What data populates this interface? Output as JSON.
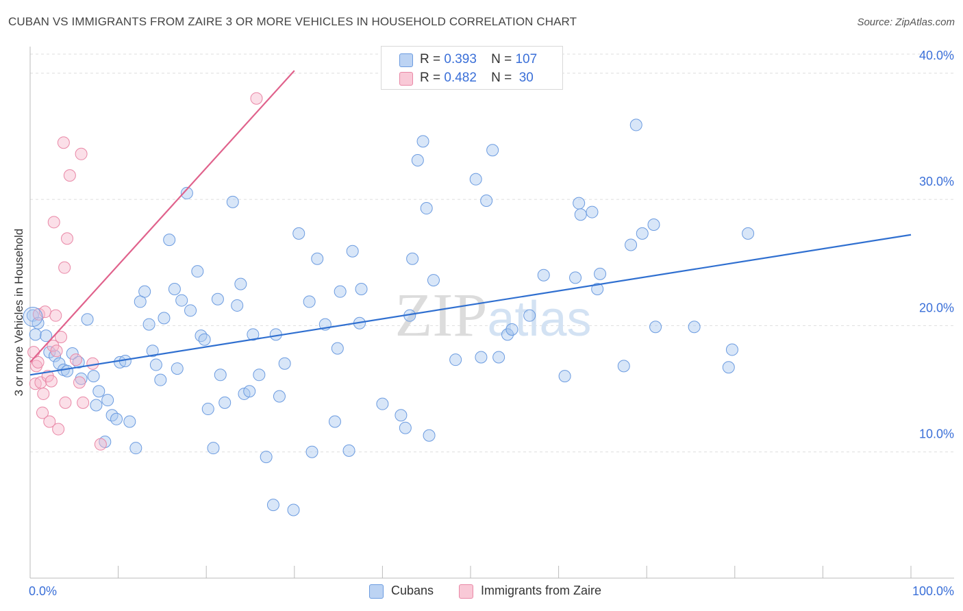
{
  "title": "CUBAN VS IMMIGRANTS FROM ZAIRE 3 OR MORE VEHICLES IN HOUSEHOLD CORRELATION CHART",
  "source": "Source: ZipAtlas.com",
  "watermark": "ZIPatlas",
  "legend": {
    "r_label": "R =",
    "n_label": "N =",
    "rows": [
      {
        "r": "0.393",
        "n": "107",
        "color": "#a9c7f0",
        "border": "#6b9be0"
      },
      {
        "r": "0.482",
        "n": "30",
        "color": "#f7b9cb",
        "border": "#e987a6"
      }
    ]
  },
  "bottom_legend": [
    "Cubans",
    "Immigrants from Zaire"
  ],
  "chart_data": {
    "type": "scatter",
    "title": "CUBAN VS IMMIGRANTS FROM ZAIRE 3 OR MORE VEHICLES IN HOUSEHOLD CORRELATION CHART",
    "xlabel": "",
    "ylabel": "3 or more Vehicles in Household",
    "xlim": [
      0,
      100
    ],
    "ylim": [
      0,
      42
    ],
    "x_tick_labels": [
      "0.0%",
      "100.0%"
    ],
    "y_ticks": [
      10,
      20,
      30,
      40
    ],
    "y_tick_labels": [
      "10.0%",
      "20.0%",
      "30.0%",
      "40.0%"
    ],
    "grid": true,
    "series": [
      {
        "name": "Cubans",
        "color": "#a9c7f0",
        "edge": "#6b9be0",
        "line_color": "#2f6fd0",
        "trend": [
          [
            0,
            16.1
          ],
          [
            100,
            27.2
          ]
        ],
        "points": [
          [
            0.3,
            20.8
          ],
          [
            0.6,
            19.3
          ],
          [
            0.9,
            20.2
          ],
          [
            1.8,
            19.2
          ],
          [
            2.2,
            17.9
          ],
          [
            2.8,
            17.6
          ],
          [
            3.3,
            17.0
          ],
          [
            3.8,
            16.5
          ],
          [
            4.2,
            16.4
          ],
          [
            4.8,
            17.8
          ],
          [
            5.5,
            17.1
          ],
          [
            5.8,
            15.8
          ],
          [
            6.5,
            20.5
          ],
          [
            7.2,
            16.0
          ],
          [
            7.5,
            13.7
          ],
          [
            7.8,
            14.8
          ],
          [
            8.5,
            10.8
          ],
          [
            8.8,
            14.1
          ],
          [
            9.3,
            12.9
          ],
          [
            9.8,
            12.6
          ],
          [
            10.2,
            17.1
          ],
          [
            10.8,
            17.2
          ],
          [
            11.3,
            12.4
          ],
          [
            12.0,
            10.3
          ],
          [
            12.5,
            21.9
          ],
          [
            13.0,
            22.7
          ],
          [
            13.5,
            20.1
          ],
          [
            13.9,
            18.0
          ],
          [
            14.3,
            16.9
          ],
          [
            14.8,
            15.7
          ],
          [
            15.2,
            20.6
          ],
          [
            15.8,
            26.8
          ],
          [
            16.4,
            22.9
          ],
          [
            16.7,
            16.6
          ],
          [
            17.2,
            22.0
          ],
          [
            17.8,
            30.5
          ],
          [
            18.2,
            21.2
          ],
          [
            19.0,
            24.3
          ],
          [
            19.4,
            19.2
          ],
          [
            19.8,
            18.9
          ],
          [
            20.2,
            13.4
          ],
          [
            20.8,
            10.3
          ],
          [
            21.3,
            22.1
          ],
          [
            21.6,
            16.1
          ],
          [
            22.1,
            13.9
          ],
          [
            23.0,
            29.8
          ],
          [
            23.5,
            21.6
          ],
          [
            23.9,
            23.3
          ],
          [
            24.3,
            14.6
          ],
          [
            24.9,
            14.8
          ],
          [
            25.3,
            19.3
          ],
          [
            26.0,
            16.1
          ],
          [
            26.8,
            9.6
          ],
          [
            27.6,
            5.8
          ],
          [
            27.9,
            19.3
          ],
          [
            28.3,
            14.4
          ],
          [
            28.9,
            17.0
          ],
          [
            29.9,
            5.4
          ],
          [
            30.5,
            27.3
          ],
          [
            31.7,
            21.9
          ],
          [
            32.0,
            10.0
          ],
          [
            32.6,
            25.3
          ],
          [
            33.5,
            20.1
          ],
          [
            34.6,
            12.4
          ],
          [
            34.9,
            18.2
          ],
          [
            35.2,
            22.7
          ],
          [
            36.2,
            10.1
          ],
          [
            36.6,
            25.9
          ],
          [
            37.4,
            20.2
          ],
          [
            37.6,
            22.9
          ],
          [
            40.0,
            13.8
          ],
          [
            42.1,
            12.9
          ],
          [
            42.6,
            11.9
          ],
          [
            43.1,
            20.8
          ],
          [
            43.4,
            25.3
          ],
          [
            44.0,
            33.1
          ],
          [
            44.6,
            34.6
          ],
          [
            45.0,
            29.3
          ],
          [
            45.3,
            11.3
          ],
          [
            45.8,
            23.6
          ],
          [
            48.3,
            17.3
          ],
          [
            50.6,
            31.6
          ],
          [
            51.2,
            17.5
          ],
          [
            51.8,
            29.9
          ],
          [
            52.5,
            33.9
          ],
          [
            53.2,
            17.5
          ],
          [
            54.2,
            19.3
          ],
          [
            54.7,
            19.7
          ],
          [
            56.7,
            20.8
          ],
          [
            58.3,
            24.0
          ],
          [
            60.7,
            16.0
          ],
          [
            61.9,
            23.8
          ],
          [
            62.3,
            29.7
          ],
          [
            62.5,
            28.8
          ],
          [
            63.8,
            29.0
          ],
          [
            64.4,
            22.9
          ],
          [
            64.7,
            24.1
          ],
          [
            67.4,
            16.8
          ],
          [
            68.2,
            26.4
          ],
          [
            68.8,
            35.9
          ],
          [
            69.5,
            27.3
          ],
          [
            70.8,
            28.0
          ],
          [
            71.0,
            19.9
          ],
          [
            75.4,
            19.9
          ],
          [
            79.3,
            16.7
          ],
          [
            79.7,
            18.1
          ],
          [
            81.5,
            27.3
          ]
        ]
      },
      {
        "name": "Immigrants from Zaire",
        "color": "#f7b9cb",
        "edge": "#e987a6",
        "line_color": "#e0628c",
        "trend": [
          [
            0,
            17.1
          ],
          [
            30,
            40.2
          ]
        ],
        "points": [
          [
            0.4,
            17.9
          ],
          [
            0.6,
            15.4
          ],
          [
            0.7,
            16.8
          ],
          [
            0.9,
            17.1
          ],
          [
            1.0,
            20.9
          ],
          [
            1.2,
            15.5
          ],
          [
            1.4,
            13.1
          ],
          [
            1.5,
            14.6
          ],
          [
            1.7,
            21.1
          ],
          [
            2.0,
            16.0
          ],
          [
            2.2,
            12.4
          ],
          [
            2.4,
            15.6
          ],
          [
            2.6,
            18.4
          ],
          [
            2.7,
            28.2
          ],
          [
            2.9,
            20.8
          ],
          [
            3.0,
            18.0
          ],
          [
            3.2,
            11.8
          ],
          [
            3.5,
            19.1
          ],
          [
            3.8,
            34.5
          ],
          [
            3.9,
            24.6
          ],
          [
            4.0,
            13.9
          ],
          [
            4.2,
            26.9
          ],
          [
            4.5,
            31.9
          ],
          [
            5.2,
            17.3
          ],
          [
            5.6,
            15.5
          ],
          [
            5.8,
            33.6
          ],
          [
            6.0,
            13.9
          ],
          [
            7.1,
            17.0
          ],
          [
            8.0,
            10.6
          ],
          [
            25.7,
            38.0
          ]
        ]
      }
    ]
  }
}
